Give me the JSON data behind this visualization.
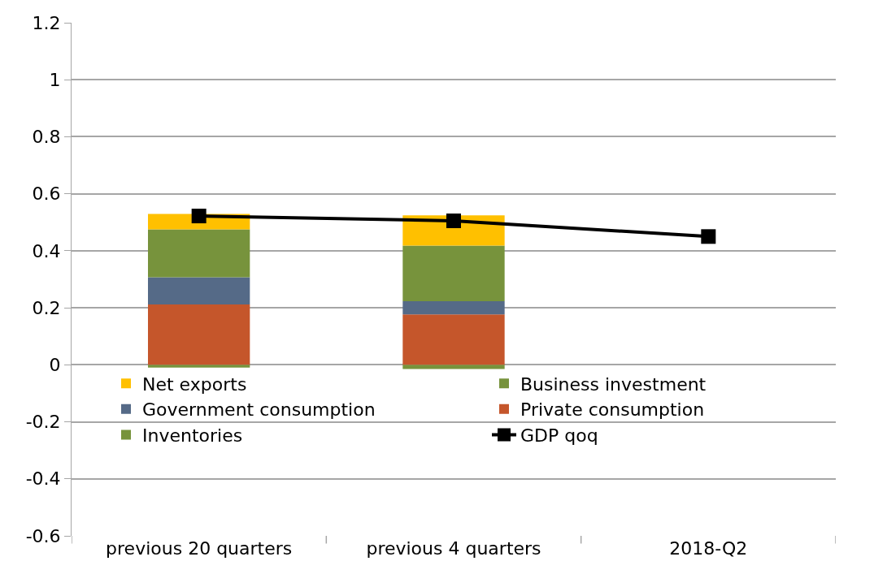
{
  "chart_data": {
    "type": "bar",
    "stacked": true,
    "categories": [
      "previous 20 quarters",
      "previous 4 quarters",
      "2018-Q2"
    ],
    "series": [
      {
        "name": "Inventories",
        "color": "#77933c",
        "values": [
          -0.01,
          -0.015,
          null
        ]
      },
      {
        "name": "Private consumption",
        "color": "#c5562b",
        "values": [
          0.212,
          0.177,
          null
        ]
      },
      {
        "name": "Government consumption",
        "color": "#556a87",
        "values": [
          0.095,
          0.046,
          null
        ]
      },
      {
        "name": "Business investment",
        "color": "#77933c",
        "values": [
          0.168,
          0.195,
          null
        ]
      },
      {
        "name": "Net exports",
        "color": "#ffc000",
        "values": [
          0.054,
          0.106,
          null
        ]
      },
      {
        "name": "GDP qoq",
        "type": "line",
        "color": "#000000",
        "marker": "square",
        "values": [
          0.522,
          0.505,
          0.45
        ]
      }
    ],
    "ylim": [
      -0.6,
      1.2
    ],
    "yticks": [
      -0.6,
      -0.4,
      -0.2,
      0,
      0.2,
      0.4,
      0.6,
      0.8,
      1,
      1.2
    ],
    "grid": "y",
    "legend": "bottom"
  }
}
